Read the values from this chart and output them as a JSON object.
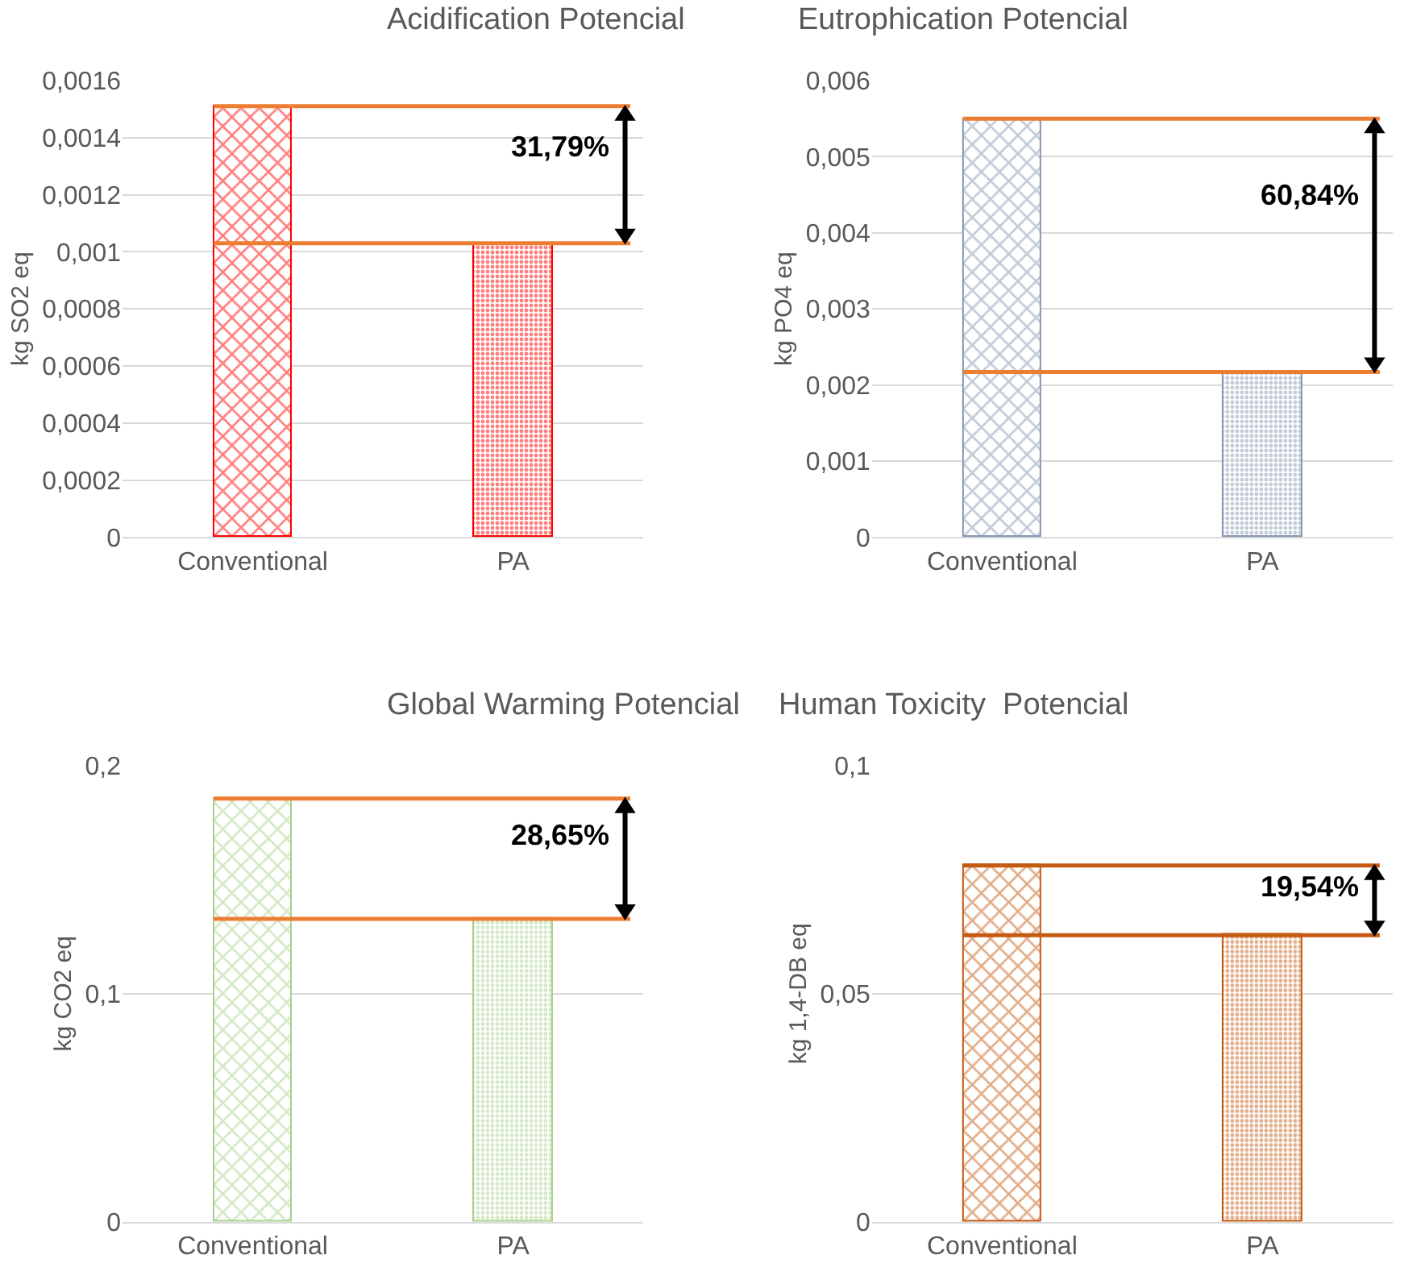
{
  "chart_data": [
    {
      "type": "bar",
      "title": "Acidification Potencial",
      "ylabel": "kg SO2 eq",
      "categories": [
        "Conventional",
        "PA"
      ],
      "values": [
        0.00151,
        0.00103
      ],
      "color": "#ff0000",
      "ylim": [
        0,
        0.0016
      ],
      "yticks": [
        0,
        {
          "value": 0.0002,
          "label": "0,0002"
        },
        {
          "value": 0.0004,
          "label": "0,0004"
        },
        {
          "value": 0.0006,
          "label": "0,0006"
        },
        {
          "value": 0.0008,
          "label": "0,0008"
        },
        {
          "value": 0.001,
          "label": "0,001"
        },
        {
          "value": 0.0012,
          "label": "0,0012"
        },
        {
          "value": 0.0014,
          "label": "0,0014"
        },
        {
          "value": 0.0016,
          "label": "0,0016"
        }
      ],
      "grid": "y",
      "ref_lines": [
        {
          "axis": "y",
          "value": 0.00151,
          "color": "#ed7d31"
        },
        {
          "axis": "y",
          "value": 0.00103,
          "color": "#ed7d31"
        }
      ],
      "annotations": [
        "31,79%"
      ]
    },
    {
      "type": "bar",
      "title": "Eutrophication Potencial",
      "ylabel": "kg PO4 eq",
      "categories": [
        "Conventional",
        "PA"
      ],
      "values": [
        0.0055,
        0.00217
      ],
      "color": "#8497b0",
      "ylim": [
        0,
        0.006
      ],
      "yticks": [
        0,
        {
          "value": 0.001,
          "label": "0,001"
        },
        {
          "value": 0.002,
          "label": "0,002"
        },
        {
          "value": 0.003,
          "label": "0,003"
        },
        {
          "value": 0.004,
          "label": "0,004"
        },
        {
          "value": 0.005,
          "label": "0,005"
        },
        {
          "value": 0.006,
          "label": "0,006"
        }
      ],
      "grid": "y",
      "ref_lines": [
        {
          "axis": "y",
          "value": 0.0055,
          "color": "#ed7d31"
        },
        {
          "axis": "y",
          "value": 0.00217,
          "color": "#ed7d31"
        }
      ],
      "annotations": [
        "60,84%"
      ]
    },
    {
      "type": "bar",
      "title": "Global Warming Potencial",
      "ylabel": "kg CO2 eq",
      "categories": [
        "Conventional",
        "PA"
      ],
      "values": [
        0.1855,
        0.1328
      ],
      "color": "#a9d18e",
      "ylim": [
        0,
        0.2
      ],
      "yticks": [
        0,
        {
          "value": 0.1,
          "label": "0,1"
        },
        {
          "value": 0.2,
          "label": "0,2"
        }
      ],
      "grid": "y",
      "ref_lines": [
        {
          "axis": "y",
          "value": 0.1855,
          "color": "#ed7d31"
        },
        {
          "axis": "y",
          "value": 0.1328,
          "color": "#ed7d31"
        }
      ],
      "annotations": [
        "28,65%"
      ]
    },
    {
      "type": "bar",
      "title": "Human Toxicity  Potencial",
      "ylabel": "kg 1,4-DB eq",
      "categories": [
        "Conventional",
        "PA"
      ],
      "values": [
        0.0781,
        0.0628
      ],
      "color": "#c55a11",
      "ylim": [
        0,
        0.1
      ],
      "yticks": [
        0,
        {
          "value": 0.05,
          "label": "0,05"
        },
        {
          "value": 0.1,
          "label": "0,1"
        }
      ],
      "grid": "y",
      "ref_lines": [
        {
          "axis": "y",
          "value": 0.0781,
          "color": "#c55a11"
        },
        {
          "axis": "y",
          "value": 0.0628,
          "color": "#c55a11"
        }
      ],
      "annotations": [
        "19,54%"
      ]
    }
  ]
}
